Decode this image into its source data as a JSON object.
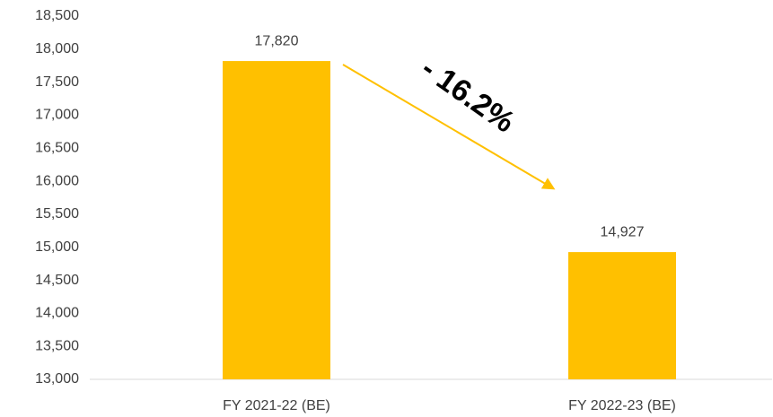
{
  "chart_data": {
    "type": "bar",
    "categories": [
      "FY 2021-22 (BE)",
      "FY 2022-23 (BE)"
    ],
    "values": [
      17820,
      14927
    ],
    "value_labels": [
      "17,820",
      "14,927"
    ],
    "color": "#FFC000",
    "ylim": [
      13000,
      18500
    ],
    "yticks": [
      {
        "value": 13000,
        "label": "13,000"
      },
      {
        "value": 13500,
        "label": "13,500"
      },
      {
        "value": 14000,
        "label": "14,000"
      },
      {
        "value": 14500,
        "label": "14,500"
      },
      {
        "value": 15000,
        "label": "15,000"
      },
      {
        "value": 15500,
        "label": "15,500"
      },
      {
        "value": 16000,
        "label": "16,000"
      },
      {
        "value": 16500,
        "label": "16,500"
      },
      {
        "value": 17000,
        "label": "17,000"
      },
      {
        "value": 17500,
        "label": "17,500"
      },
      {
        "value": 18000,
        "label": "18,000"
      },
      {
        "value": 18500,
        "label": "18,500"
      }
    ],
    "grid": false,
    "annotation": "- 16.2%"
  }
}
